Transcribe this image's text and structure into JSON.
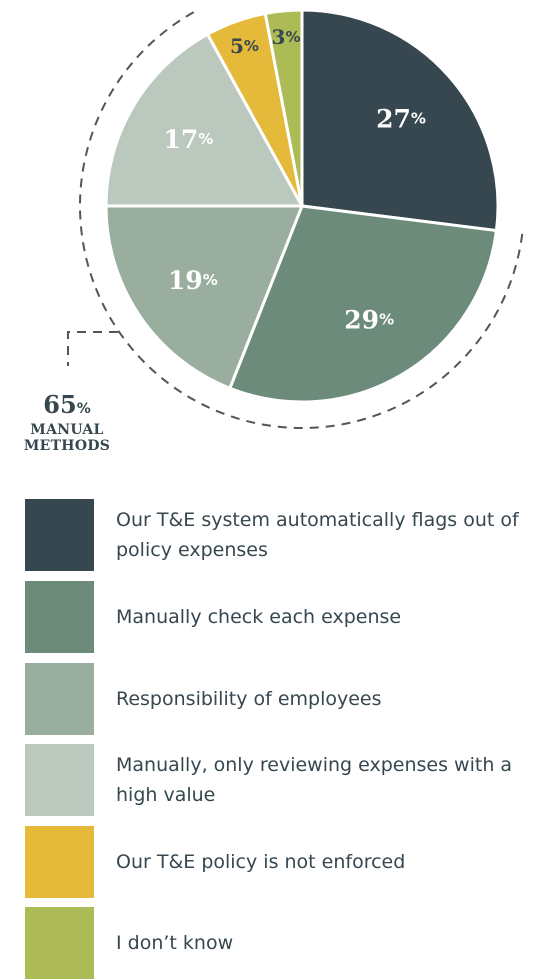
{
  "chart_data": {
    "type": "pie",
    "slices": [
      {
        "label": "Our T&E system automatically flags out of policy expenses",
        "value": 27,
        "color": "#37474f",
        "label_color": "#ffffff"
      },
      {
        "label": "Manually check each expense",
        "value": 29,
        "color": "#6d8b7a",
        "label_color": "#ffffff"
      },
      {
        "label": "Responsibility of employees",
        "value": 19,
        "color": "#99ae9f",
        "label_color": "#ffffff"
      },
      {
        "label": "Manually, only reviewing expenses with a high value",
        "value": 17,
        "color": "#bbc8be",
        "label_color": "#ffffff"
      },
      {
        "label": "Our T&E policy is not enforced",
        "value": 5,
        "color": "#e5b93a",
        "label_color": "#37474f"
      },
      {
        "label": "I don’t know",
        "value": 3,
        "color": "#acbb55",
        "label_color": "#37474f"
      }
    ],
    "slice_labels": [
      "27",
      "29",
      "19",
      "17",
      "5",
      "3"
    ],
    "percent_sign": "%",
    "start_angle_deg": 0,
    "direction": "clockwise",
    "annotation": {
      "value": "65",
      "percent_sign": "%",
      "line1": "MANUAL",
      "line2": "METHODS",
      "spans_slices": [
        "Manually check each expense",
        "Responsibility of employees",
        "Manually, only reviewing expenses with a high value"
      ]
    },
    "legend": {
      "placement": "bottom",
      "items": [
        "Our T&E system automatically flags out of policy expenses",
        "Manually check each expense",
        "Responsibility of employees",
        "Manually, only reviewing expenses with a high value",
        "Our T&E policy is not enforced",
        "I don’t know"
      ]
    }
  }
}
